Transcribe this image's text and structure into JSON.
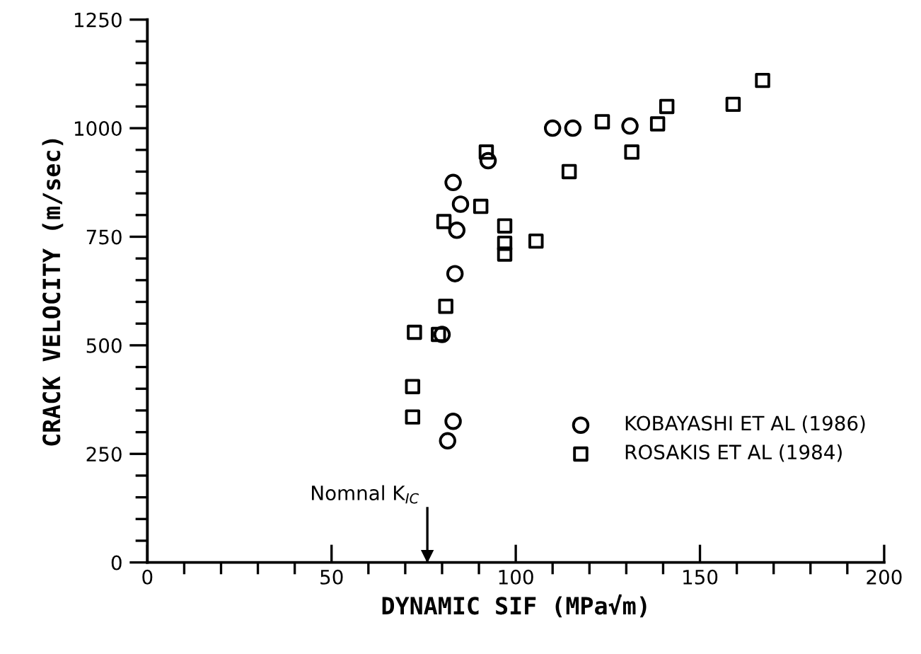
{
  "chart_data": {
    "type": "scatter",
    "xlabel": "DYNAMIC SIF (MPa√m)",
    "ylabel": "CRACK VELOCITY (m/sec)",
    "series": [
      {
        "name": "KOBAYASHI ET AL (1986)",
        "color": "#000000",
        "marker": "circle",
        "x": [
          110,
          115.5,
          131,
          92.5,
          83,
          85,
          84,
          83.5,
          80,
          83,
          81.5
        ],
        "values": [
          1000,
          1000,
          1005,
          925,
          875,
          825,
          765,
          665,
          525,
          325,
          280
        ]
      },
      {
        "name": "ROSAKIS ET AL (1984)",
        "color": "#000000",
        "marker": "square",
        "x": [
          167,
          159,
          141,
          123.5,
          138.5,
          131.5,
          114.5,
          92,
          90.5,
          80.5,
          97,
          97,
          97,
          105.5,
          81,
          72.5,
          79,
          72,
          72
        ],
        "values": [
          1110,
          1055,
          1050,
          1015,
          1010,
          945,
          900,
          945,
          820,
          785,
          775,
          735,
          710,
          740,
          590,
          530,
          525,
          405,
          335
        ]
      }
    ],
    "xlim": [
      0,
      200
    ],
    "ylim": [
      0,
      1250
    ],
    "xticks": [
      0,
      {
        "value": 10,
        "label": null
      },
      {
        "value": 20,
        "label": null
      },
      {
        "value": 30,
        "label": null
      },
      {
        "value": 40,
        "label": null
      },
      50,
      {
        "value": 60,
        "label": null
      },
      {
        "value": 70,
        "label": null
      },
      {
        "value": 80,
        "label": null
      },
      {
        "value": 90,
        "label": null
      },
      100,
      {
        "value": 110,
        "label": null
      },
      {
        "value": 120,
        "label": null
      },
      {
        "value": 130,
        "label": null
      },
      {
        "value": 140,
        "label": null
      },
      150,
      {
        "value": 160,
        "label": null
      },
      {
        "value": 170,
        "label": null
      },
      {
        "value": 180,
        "label": null
      },
      {
        "value": 190,
        "label": null
      },
      200
    ],
    "yticks": [
      0,
      {
        "value": 50,
        "label": null
      },
      {
        "value": 100,
        "label": null
      },
      {
        "value": 150,
        "label": null
      },
      {
        "value": 200,
        "label": null
      },
      250,
      {
        "value": 300,
        "label": null
      },
      {
        "value": 350,
        "label": null
      },
      {
        "value": 400,
        "label": null
      },
      {
        "value": 450,
        "label": null
      },
      500,
      {
        "value": 550,
        "label": null
      },
      {
        "value": 600,
        "label": null
      },
      {
        "value": 650,
        "label": null
      },
      {
        "value": 700,
        "label": null
      },
      750,
      {
        "value": 800,
        "label": null
      },
      {
        "value": 850,
        "label": null
      },
      {
        "value": 900,
        "label": null
      },
      {
        "value": 950,
        "label": null
      },
      1000,
      {
        "value": 1050,
        "label": null
      },
      {
        "value": 1100,
        "label": null
      },
      {
        "value": 1150,
        "label": null
      },
      {
        "value": 1200,
        "label": null
      },
      1250
    ],
    "ref_lines": [
      {
        "axis": "x",
        "value": 76,
        "label": "Nomnal K$_{IC}$"
      }
    ],
    "grid": false,
    "legend": "bottom right"
  }
}
